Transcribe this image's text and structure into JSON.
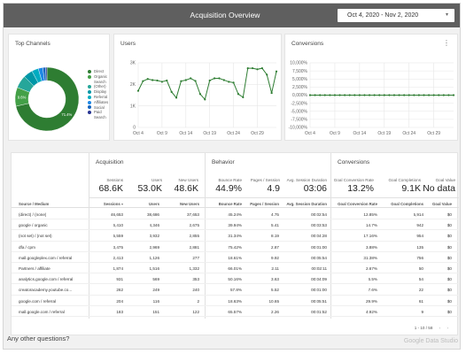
{
  "header": {
    "title": "Acquisition Overview",
    "date_range": "Oct 4, 2020 - Nov 2, 2020",
    "date_caret": "▾"
  },
  "top_channels": {
    "title": "Top Channels",
    "legend": [
      {
        "label": "Direct",
        "color": "#2e7d32"
      },
      {
        "label": "Organic Search",
        "color": "#43a047"
      },
      {
        "label": "(Other)",
        "color": "#26a69a"
      },
      {
        "label": "Display",
        "color": "#0097a7"
      },
      {
        "label": "Referral",
        "color": "#00acc1"
      },
      {
        "label": "Affiliates",
        "color": "#1e88e5"
      },
      {
        "label": "Social",
        "color": "#1565c0"
      },
      {
        "label": "Paid Search",
        "color": "#283593"
      }
    ],
    "slice_labels": [
      {
        "text": "71.4%",
        "slice": "Direct"
      },
      {
        "text": "9.6%",
        "slice": "Organic Search"
      }
    ]
  },
  "users_chart": {
    "title": "Users"
  },
  "conversions_chart": {
    "title": "Conversions",
    "menu_icon": "⋮"
  },
  "chart_data": [
    {
      "type": "pie",
      "title": "Top Channels",
      "donut": true,
      "categories": [
        "Direct",
        "Organic Search",
        "(Other)",
        "Display",
        "Referral",
        "Affiliates",
        "Social",
        "Paid Search"
      ],
      "values": [
        71.4,
        9.6,
        6.5,
        4.7,
        3.4,
        2.3,
        1.4,
        0.7
      ],
      "colors": [
        "#2e7d32",
        "#43a047",
        "#26a69a",
        "#0097a7",
        "#00acc1",
        "#1e88e5",
        "#1565c0",
        "#283593"
      ],
      "legend": "right"
    },
    {
      "type": "line",
      "title": "Users",
      "xlabel": "",
      "ylabel": "",
      "x_ticks": [
        "Oct 4",
        "Oct 9",
        "Oct 14",
        "Oct 19",
        "Oct 24",
        "Oct 29"
      ],
      "y_ticks": [
        "0",
        "1K",
        "2K",
        "3K"
      ],
      "ylim": [
        0,
        3000
      ],
      "x": [
        "Oct 4",
        "Oct 5",
        "Oct 6",
        "Oct 7",
        "Oct 8",
        "Oct 9",
        "Oct 10",
        "Oct 11",
        "Oct 12",
        "Oct 13",
        "Oct 14",
        "Oct 15",
        "Oct 16",
        "Oct 17",
        "Oct 18",
        "Oct 19",
        "Oct 20",
        "Oct 21",
        "Oct 22",
        "Oct 23",
        "Oct 24",
        "Oct 25",
        "Oct 26",
        "Oct 27",
        "Oct 28",
        "Oct 29",
        "Oct 30",
        "Oct 31",
        "Nov 1",
        "Nov 2"
      ],
      "series": [
        {
          "color": "#2e7d32",
          "values": [
            1700,
            2150,
            2250,
            2200,
            2180,
            2120,
            2180,
            1650,
            1380,
            2150,
            2200,
            2280,
            2160,
            1550,
            1300,
            2180,
            2280,
            2280,
            2200,
            2120,
            2080,
            1550,
            1400,
            2750,
            2750,
            2700,
            2750,
            2450,
            1600,
            2600
          ]
        }
      ],
      "grid": true
    },
    {
      "type": "line",
      "title": "Conversions",
      "xlabel": "",
      "ylabel": "",
      "x_ticks": [
        "Oct 4",
        "Oct 9",
        "Oct 14",
        "Oct 19",
        "Oct 24",
        "Oct 29"
      ],
      "y_ticks": [
        "10,000%",
        "7,500%",
        "5,000%",
        "2,500%",
        "0,000%",
        "-2,500%",
        "-5,000%",
        "-7,500%",
        "-10,000%"
      ],
      "ylim": [
        -10000,
        10000
      ],
      "x": [
        "Oct 4",
        "Oct 5",
        "Oct 6",
        "Oct 7",
        "Oct 8",
        "Oct 9",
        "Oct 10",
        "Oct 11",
        "Oct 12",
        "Oct 13",
        "Oct 14",
        "Oct 15",
        "Oct 16",
        "Oct 17",
        "Oct 18",
        "Oct 19",
        "Oct 20",
        "Oct 21",
        "Oct 22",
        "Oct 23",
        "Oct 24",
        "Oct 25",
        "Oct 26",
        "Oct 27",
        "Oct 28",
        "Oct 29",
        "Oct 30",
        "Oct 31",
        "Nov 1",
        "Nov 2"
      ],
      "series": [
        {
          "color": "#2e7d32",
          "values": [
            0,
            0,
            0,
            0,
            0,
            0,
            0,
            0,
            0,
            0,
            0,
            0,
            0,
            0,
            0,
            0,
            0,
            0,
            0,
            0,
            0,
            0,
            0,
            0,
            0,
            0,
            0,
            0,
            0,
            0
          ]
        }
      ],
      "grid": true
    }
  ],
  "table": {
    "groups": {
      "acquisition": "Acquisition",
      "behavior": "Behavior",
      "conversions": "Conversions"
    },
    "summary": [
      {
        "label": "Sessions",
        "value": "68.6K"
      },
      {
        "label": "Users",
        "value": "53.0K"
      },
      {
        "label": "New Users",
        "value": "48.6K"
      },
      {
        "label": "Bounce Rate",
        "value": "44.9%"
      },
      {
        "label": "Pages / Session",
        "value": "4.9"
      },
      {
        "label": "Avg. Session Duration",
        "value": "03:06"
      },
      {
        "label": "Goal Conversion Rate",
        "value": "13.2%"
      },
      {
        "label": "Goal Completions",
        "value": "9.1K"
      },
      {
        "label": "Goal Value",
        "value": "No data"
      }
    ],
    "columns": [
      "Source / Medium",
      "Sessions",
      "Users",
      "New Users",
      "Bounce Rate",
      "Pages / Session",
      "Avg. Session Duration",
      "Goal Conversion Rate",
      "Goal Completions",
      "Goal Value"
    ],
    "sort_indicator": "▾",
    "rows": [
      [
        "(direct) / (none)",
        "46,653",
        "38,686",
        "37,653",
        "45.24%",
        "4.75",
        "00:02:54",
        "12.85%",
        "5,914",
        "$0"
      ],
      [
        "google / organic",
        "6,410",
        "4,346",
        "2,675",
        "39.94%",
        "5.41",
        "00:03:53",
        "14.7%",
        "942",
        "$0"
      ],
      [
        "(not set) / (not set)",
        "5,559",
        "3,932",
        "2,855",
        "31.34%",
        "8.19",
        "00:04:28",
        "17.16%",
        "954",
        "$0"
      ],
      [
        "dfa / cpm",
        "3,475",
        "2,969",
        "2,881",
        "75.42%",
        "2.87",
        "00:01:00",
        "3.88%",
        "135",
        "$0"
      ],
      [
        "mall.googleplex.com / referral",
        "2,413",
        "1,126",
        "277",
        "18.61%",
        "9.92",
        "00:05:54",
        "31.38%",
        "756",
        "$0"
      ],
      [
        "Partners / affiliate",
        "1,874",
        "1,516",
        "1,332",
        "66.01%",
        "2.11",
        "00:02:11",
        "2.67%",
        "50",
        "$0"
      ],
      [
        "analytics.google.com / referral",
        "931",
        "569",
        "353",
        "50.16%",
        "3.63",
        "00:04:09",
        "6.5%",
        "54",
        "$0"
      ],
      [
        "creatoracademy.youtube.co...",
        "262",
        "249",
        "240",
        "57.8%",
        "5.52",
        "00:01:00",
        "7.6%",
        "22",
        "$0"
      ],
      [
        "google.com / referral",
        "204",
        "116",
        "2",
        "18.63%",
        "10.65",
        "00:05:51",
        "29.9%",
        "61",
        "$0"
      ],
      [
        "mall.google.com / referral",
        "183",
        "151",
        "122",
        "65.57%",
        "2.26",
        "00:01:52",
        "4.92%",
        "9",
        "$0"
      ]
    ],
    "pagination": "1 - 10 / 58",
    "prev_icon": "‹",
    "next_icon": "›"
  },
  "footer": {
    "question": "Any other questions?",
    "brand": "Google Data Studio"
  }
}
